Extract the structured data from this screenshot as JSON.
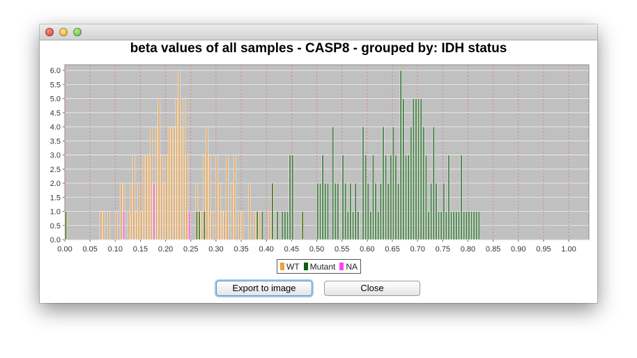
{
  "window": {
    "controls": [
      "close-icon",
      "minimize-icon",
      "maximize-icon"
    ]
  },
  "buttons": {
    "export_label": "Export to image",
    "close_label": "Close"
  },
  "chart_data": {
    "type": "bar",
    "title": "beta values of all samples - CASP8 - grouped by: IDH status",
    "xlabel": "",
    "ylabel": "",
    "xlim": [
      0.0,
      1.04
    ],
    "ylim": [
      0.0,
      6.2
    ],
    "bin_width": 0.005,
    "grid": true,
    "legend_position": "bottom-center",
    "x_ticks": [
      "0.00",
      "0.05",
      "0.10",
      "0.15",
      "0.20",
      "0.25",
      "0.30",
      "0.35",
      "0.40",
      "0.45",
      "0.50",
      "0.55",
      "0.60",
      "0.65",
      "0.70",
      "0.75",
      "0.80",
      "0.85",
      "0.90",
      "0.95",
      "1.00"
    ],
    "y_ticks": [
      "0.0",
      "0.5",
      "1.0",
      "1.5",
      "2.0",
      "2.5",
      "3.0",
      "3.5",
      "4.0",
      "4.5",
      "5.0",
      "5.5",
      "6.0"
    ],
    "series": [
      {
        "name": "WT",
        "color": "#f0a040",
        "points": [
          [
            0.0,
            1
          ],
          [
            0.07,
            1
          ],
          [
            0.075,
            1
          ],
          [
            0.085,
            1
          ],
          [
            0.1,
            1
          ],
          [
            0.11,
            2
          ],
          [
            0.115,
            2
          ],
          [
            0.125,
            1
          ],
          [
            0.13,
            2
          ],
          [
            0.135,
            3
          ],
          [
            0.14,
            1
          ],
          [
            0.145,
            2
          ],
          [
            0.15,
            1
          ],
          [
            0.155,
            3
          ],
          [
            0.16,
            3
          ],
          [
            0.165,
            3
          ],
          [
            0.17,
            4
          ],
          [
            0.175,
            2
          ],
          [
            0.18,
            4
          ],
          [
            0.185,
            5
          ],
          [
            0.19,
            3
          ],
          [
            0.195,
            2
          ],
          [
            0.2,
            3
          ],
          [
            0.205,
            4
          ],
          [
            0.21,
            4
          ],
          [
            0.215,
            4
          ],
          [
            0.22,
            5
          ],
          [
            0.225,
            6
          ],
          [
            0.23,
            4
          ],
          [
            0.235,
            5
          ],
          [
            0.24,
            3
          ],
          [
            0.245,
            1
          ],
          [
            0.26,
            2
          ],
          [
            0.265,
            1
          ],
          [
            0.27,
            1
          ],
          [
            0.275,
            3
          ],
          [
            0.28,
            4
          ],
          [
            0.285,
            3
          ],
          [
            0.29,
            1
          ],
          [
            0.3,
            3
          ],
          [
            0.305,
            2
          ],
          [
            0.31,
            1
          ],
          [
            0.315,
            1
          ],
          [
            0.32,
            3
          ],
          [
            0.33,
            2
          ],
          [
            0.335,
            3
          ],
          [
            0.345,
            1
          ],
          [
            0.35,
            1
          ],
          [
            0.365,
            2
          ],
          [
            0.375,
            1
          ],
          [
            0.38,
            1
          ],
          [
            0.385,
            1
          ],
          [
            0.405,
            1
          ],
          [
            0.41,
            2
          ],
          [
            0.47,
            1
          ]
        ]
      },
      {
        "name": "Mutant",
        "color": "#0d5f0d",
        "points": [
          [
            0.0,
            1
          ],
          [
            0.26,
            1
          ],
          [
            0.265,
            1
          ],
          [
            0.275,
            1
          ],
          [
            0.38,
            1
          ],
          [
            0.39,
            1
          ],
          [
            0.41,
            2
          ],
          [
            0.42,
            1
          ],
          [
            0.43,
            1
          ],
          [
            0.435,
            1
          ],
          [
            0.44,
            1
          ],
          [
            0.445,
            3
          ],
          [
            0.45,
            3
          ],
          [
            0.47,
            1
          ],
          [
            0.5,
            2
          ],
          [
            0.505,
            2
          ],
          [
            0.51,
            3
          ],
          [
            0.515,
            2
          ],
          [
            0.52,
            2
          ],
          [
            0.53,
            4
          ],
          [
            0.535,
            2
          ],
          [
            0.54,
            2
          ],
          [
            0.55,
            3
          ],
          [
            0.555,
            2
          ],
          [
            0.56,
            1
          ],
          [
            0.565,
            2
          ],
          [
            0.57,
            1
          ],
          [
            0.575,
            2
          ],
          [
            0.58,
            1
          ],
          [
            0.59,
            4
          ],
          [
            0.595,
            3
          ],
          [
            0.6,
            2
          ],
          [
            0.605,
            1
          ],
          [
            0.61,
            3
          ],
          [
            0.615,
            2
          ],
          [
            0.62,
            1
          ],
          [
            0.625,
            2
          ],
          [
            0.63,
            4
          ],
          [
            0.635,
            3
          ],
          [
            0.64,
            2
          ],
          [
            0.645,
            3
          ],
          [
            0.65,
            4
          ],
          [
            0.655,
            3
          ],
          [
            0.66,
            2
          ],
          [
            0.665,
            6
          ],
          [
            0.67,
            5
          ],
          [
            0.675,
            3
          ],
          [
            0.68,
            3
          ],
          [
            0.685,
            4
          ],
          [
            0.69,
            5
          ],
          [
            0.695,
            5
          ],
          [
            0.7,
            5
          ],
          [
            0.705,
            5
          ],
          [
            0.71,
            4
          ],
          [
            0.715,
            3
          ],
          [
            0.72,
            1
          ],
          [
            0.725,
            2
          ],
          [
            0.73,
            4
          ],
          [
            0.735,
            2
          ],
          [
            0.74,
            1
          ],
          [
            0.745,
            1
          ],
          [
            0.75,
            2
          ],
          [
            0.755,
            1
          ],
          [
            0.76,
            3
          ],
          [
            0.765,
            1
          ],
          [
            0.77,
            1
          ],
          [
            0.775,
            1
          ],
          [
            0.78,
            1
          ],
          [
            0.785,
            3
          ],
          [
            0.79,
            1
          ],
          [
            0.795,
            1
          ],
          [
            0.8,
            1
          ],
          [
            0.805,
            1
          ],
          [
            0.81,
            1
          ],
          [
            0.815,
            1
          ],
          [
            0.82,
            1
          ]
        ]
      },
      {
        "name": "NA",
        "color": "#ff40ff",
        "points": [
          [
            0.115,
            1
          ],
          [
            0.175,
            2
          ],
          [
            0.245,
            1
          ]
        ]
      }
    ]
  }
}
